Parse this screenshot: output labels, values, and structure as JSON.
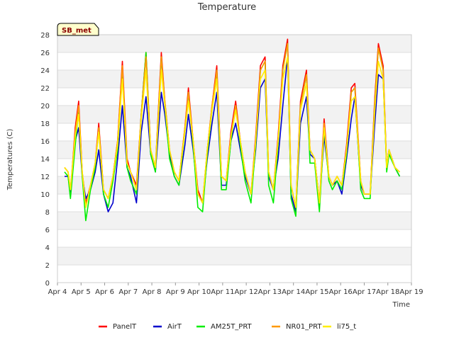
{
  "chart_data": {
    "type": "line",
    "title": "Temperature",
    "xlabel": "Time",
    "ylabel": "Temperatures (C)",
    "badge": "SB_met",
    "ylim": [
      0,
      28
    ],
    "yticks": [
      0,
      2,
      4,
      6,
      8,
      10,
      12,
      14,
      16,
      18,
      20,
      22,
      24,
      26,
      28
    ],
    "xlim": [
      4,
      19
    ],
    "xticks": [
      {
        "value": 4,
        "label": "Apr 4"
      },
      {
        "value": 5,
        "label": "Apr 5"
      },
      {
        "value": 6,
        "label": "Apr 6"
      },
      {
        "value": 7,
        "label": "Apr 7"
      },
      {
        "value": 8,
        "label": "Apr 8"
      },
      {
        "value": 9,
        "label": "Apr 9"
      },
      {
        "value": 10,
        "label": "Apr 10"
      },
      {
        "value": 11,
        "label": "Apr 11"
      },
      {
        "value": 12,
        "label": "Apr 12"
      },
      {
        "value": 13,
        "label": "Apr 13"
      },
      {
        "value": 14,
        "label": "Apr 14"
      },
      {
        "value": 15,
        "label": "Apr 15"
      },
      {
        "value": 16,
        "label": "Apr 16"
      },
      {
        "value": 17,
        "label": "Apr 17"
      },
      {
        "value": 18,
        "label": "Apr 18"
      },
      {
        "value": 19,
        "label": "Apr 19"
      }
    ],
    "x": [
      4.3,
      4.45,
      4.55,
      4.75,
      4.9,
      5.05,
      5.2,
      5.4,
      5.6,
      5.75,
      5.95,
      6.15,
      6.35,
      6.55,
      6.75,
      6.95,
      7.1,
      7.35,
      7.55,
      7.75,
      7.95,
      8.15,
      8.4,
      8.55,
      8.75,
      8.95,
      9.15,
      9.4,
      9.55,
      9.75,
      9.95,
      10.15,
      10.35,
      10.55,
      10.75,
      10.95,
      11.15,
      11.35,
      11.55,
      11.75,
      11.95,
      12.2,
      12.4,
      12.6,
      12.8,
      12.95,
      13.15,
      13.35,
      13.55,
      13.75,
      13.9,
      14.1,
      14.3,
      14.55,
      14.7,
      14.9,
      15.1,
      15.3,
      15.5,
      15.65,
      15.85,
      16.05,
      16.25,
      16.45,
      16.6,
      16.85,
      17.0,
      17.25,
      17.45,
      17.6,
      17.8,
      17.95,
      18.05,
      18.3,
      18.5
    ],
    "series": [
      {
        "name": "PanelT",
        "color": "#ff0000",
        "values": [
          13.0,
          12.5,
          10.0,
          17.5,
          20.5,
          12.5,
          9.0,
          11.0,
          13.5,
          18.0,
          10.5,
          9.5,
          12.0,
          16.0,
          25.0,
          14.0,
          12.5,
          11.0,
          19.0,
          26.0,
          15.0,
          13.0,
          26.0,
          20.5,
          15.0,
          12.5,
          11.5,
          17.5,
          22.0,
          16.0,
          10.5,
          9.0,
          15.0,
          20.0,
          24.5,
          12.0,
          11.5,
          17.0,
          20.5,
          16.0,
          12.5,
          10.0,
          16.5,
          24.5,
          25.5,
          12.5,
          10.5,
          16.5,
          24.5,
          27.5,
          11.0,
          8.5,
          20.5,
          24.0,
          15.0,
          14.0,
          9.0,
          18.5,
          12.0,
          11.0,
          12.0,
          11.0,
          15.5,
          22.0,
          22.5,
          11.5,
          10.0,
          10.0,
          21.0,
          27.0,
          24.5,
          13.0,
          15.0,
          13.0,
          12.5
        ]
      },
      {
        "name": "AirT",
        "color": "#0000cc",
        "values": [
          12.0,
          12.0,
          10.0,
          16.0,
          17.5,
          12.0,
          9.5,
          10.5,
          12.5,
          15.0,
          10.0,
          8.0,
          9.0,
          14.0,
          20.0,
          13.0,
          12.0,
          9.0,
          17.0,
          21.0,
          14.5,
          12.5,
          21.5,
          19.0,
          14.5,
          12.0,
          11.0,
          15.5,
          19.0,
          15.0,
          10.0,
          9.0,
          14.0,
          18.0,
          21.5,
          11.0,
          11.0,
          16.0,
          18.0,
          15.0,
          12.0,
          10.0,
          15.0,
          22.0,
          23.0,
          12.0,
          10.5,
          14.0,
          20.0,
          25.5,
          10.0,
          8.0,
          18.0,
          21.0,
          14.5,
          14.0,
          9.0,
          16.5,
          12.0,
          11.0,
          11.5,
          10.0,
          14.0,
          18.5,
          21.0,
          11.0,
          10.0,
          10.0,
          18.0,
          23.5,
          23.0,
          13.0,
          15.0,
          13.0,
          12.0
        ]
      },
      {
        "name": "AM25T_PRT",
        "color": "#00ee00",
        "values": [
          12.5,
          12.0,
          9.5,
          15.5,
          19.5,
          12.0,
          7.0,
          10.5,
          13.0,
          17.5,
          10.0,
          8.5,
          11.5,
          15.0,
          24.0,
          13.0,
          11.5,
          10.0,
          19.0,
          26.0,
          14.5,
          12.5,
          25.5,
          20.0,
          14.0,
          12.0,
          11.0,
          17.0,
          21.5,
          15.5,
          8.5,
          8.0,
          14.5,
          19.5,
          24.0,
          10.5,
          10.5,
          16.0,
          20.0,
          15.5,
          11.5,
          9.0,
          15.5,
          24.0,
          25.0,
          11.0,
          9.0,
          15.5,
          24.0,
          27.0,
          9.5,
          7.5,
          20.0,
          23.5,
          13.5,
          13.5,
          8.0,
          17.5,
          11.5,
          10.5,
          11.5,
          10.5,
          14.5,
          21.5,
          22.0,
          10.5,
          9.5,
          9.5,
          20.5,
          26.5,
          24.0,
          12.5,
          14.5,
          13.0,
          12.0
        ]
      },
      {
        "name": "NR01_PRT",
        "color": "#ff9900",
        "values": [
          13.0,
          12.5,
          10.5,
          17.0,
          20.0,
          12.5,
          8.5,
          11.0,
          13.5,
          17.5,
          10.5,
          9.5,
          12.0,
          16.0,
          24.5,
          13.5,
          12.5,
          10.5,
          19.0,
          25.5,
          15.0,
          13.0,
          25.5,
          20.5,
          15.0,
          12.5,
          11.5,
          17.5,
          21.5,
          16.0,
          10.0,
          9.0,
          15.0,
          20.0,
          24.0,
          12.0,
          11.5,
          16.5,
          20.0,
          16.0,
          12.5,
          10.0,
          16.0,
          24.0,
          25.0,
          12.5,
          10.5,
          16.0,
          24.0,
          27.0,
          11.0,
          8.5,
          20.0,
          23.5,
          15.0,
          14.0,
          9.0,
          18.0,
          12.0,
          11.0,
          12.0,
          11.0,
          15.0,
          21.5,
          22.0,
          11.5,
          10.0,
          10.0,
          20.5,
          26.5,
          24.0,
          13.0,
          15.0,
          13.0,
          12.5
        ]
      },
      {
        "name": "li75_t",
        "color": "#ffee00",
        "values": [
          13.0,
          12.5,
          10.5,
          16.5,
          19.0,
          12.5,
          8.5,
          11.0,
          13.5,
          17.0,
          10.5,
          9.5,
          12.0,
          15.5,
          23.0,
          13.5,
          12.5,
          10.5,
          18.5,
          24.0,
          15.0,
          13.0,
          24.0,
          20.0,
          15.0,
          12.5,
          11.5,
          17.0,
          20.5,
          16.0,
          10.0,
          9.0,
          15.0,
          19.5,
          23.0,
          12.0,
          11.5,
          16.5,
          19.5,
          16.0,
          12.5,
          10.0,
          16.0,
          23.0,
          24.0,
          12.5,
          10.5,
          16.0,
          23.0,
          25.5,
          11.0,
          8.5,
          19.5,
          22.5,
          15.0,
          14.0,
          9.0,
          17.5,
          12.0,
          11.0,
          12.0,
          11.0,
          15.0,
          20.5,
          21.0,
          11.5,
          10.0,
          10.0,
          19.5,
          25.0,
          23.0,
          13.0,
          15.0,
          13.0,
          12.5
        ]
      }
    ]
  }
}
